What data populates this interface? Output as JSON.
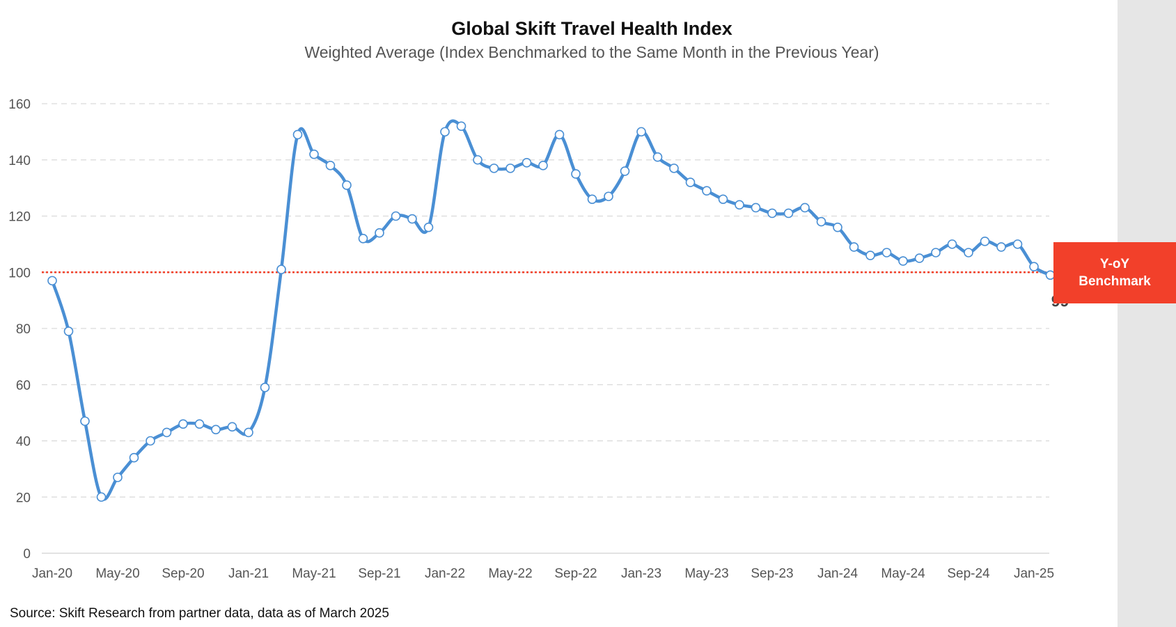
{
  "chart_data": {
    "type": "line",
    "title": "Global Skift Travel Health Index",
    "subtitle": "Weighted Average (Index Benchmarked to the Same Month in the Previous Year)",
    "xlabel": "",
    "ylabel": "",
    "ylim": [
      0,
      160
    ],
    "y_ticks": [
      0,
      20,
      40,
      60,
      80,
      100,
      120,
      140,
      160
    ],
    "x_tick_labels": [
      "Jan-20",
      "May-20",
      "Sep-20",
      "Jan-21",
      "May-21",
      "Sep-21",
      "Jan-22",
      "May-22",
      "Sep-22",
      "Jan-23",
      "May-23",
      "Sep-23",
      "Jan-24",
      "May-24",
      "Sep-24",
      "Jan-25"
    ],
    "grid": "horizontal dashed",
    "series": [
      {
        "color": "#4a8fd4",
        "values": [
          97,
          79,
          47,
          20,
          27,
          34,
          40,
          43,
          46,
          46,
          44,
          45,
          43,
          59,
          101,
          149,
          142,
          138,
          131,
          112,
          114,
          120,
          119,
          116,
          150,
          152,
          140,
          137,
          137,
          139,
          138,
          149,
          135,
          126,
          127,
          136,
          150,
          141,
          137,
          132,
          129,
          126,
          124,
          123,
          121,
          121,
          123,
          118,
          116,
          109,
          106,
          107,
          104,
          105,
          107,
          110,
          107,
          111,
          109,
          110,
          102,
          99
        ]
      }
    ],
    "benchmark": {
      "value": 100,
      "color": "#f2402a",
      "label_line1": "Y-oY",
      "label_line2": "Benchmark"
    },
    "last_value_label": "99"
  },
  "source": "Source: Skift Research from partner data, data as of March 2025"
}
